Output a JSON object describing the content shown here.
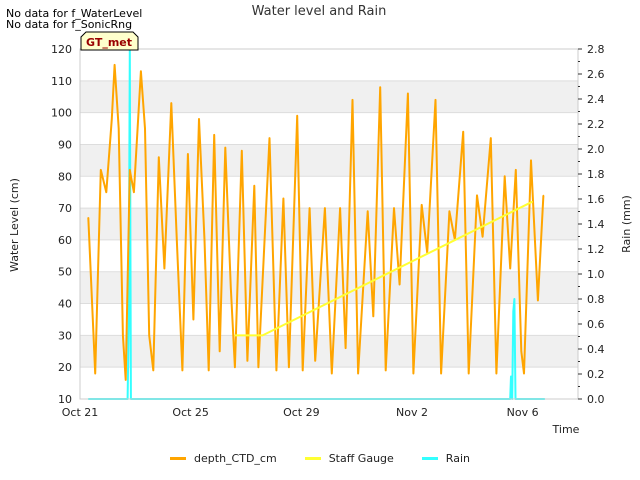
{
  "notes": [
    "No data for f_WaterLevel",
    "No data for f_SonicRng"
  ],
  "badge": "GT_met",
  "chart_data": {
    "type": "line",
    "title": "Water level and Rain",
    "xlabel": "Time",
    "ylabel": "Water Level (cm)",
    "y2label": "Rain (mm)",
    "x_ticks": [
      "Oct 21",
      "Oct 25",
      "Oct 29",
      "Nov 2",
      "Nov 6"
    ],
    "ylim": [
      10,
      120
    ],
    "y_ticks": [
      10,
      20,
      30,
      40,
      50,
      60,
      70,
      80,
      90,
      100,
      110,
      120
    ],
    "y2lim": [
      0.0,
      2.8
    ],
    "y2_ticks": [
      "0.0",
      "0.2",
      "0.4",
      "0.6",
      "0.8",
      "1.0",
      "1.2",
      "1.4",
      "1.6",
      "1.8",
      "2.0",
      "2.2",
      "2.4",
      "2.6",
      "2.8"
    ],
    "grid_bands": true,
    "legend_position": "bottom-center",
    "series": [
      {
        "name": "depth_CTD_cm",
        "color": "#FFA500",
        "axis": "left",
        "points": [
          [
            0.3,
            67
          ],
          [
            0.55,
            18
          ],
          [
            0.75,
            82
          ],
          [
            0.95,
            75
          ],
          [
            1.15,
            98
          ],
          [
            1.25,
            115
          ],
          [
            1.4,
            95
          ],
          [
            1.55,
            30
          ],
          [
            1.65,
            16
          ],
          [
            1.8,
            82
          ],
          [
            1.95,
            75
          ],
          [
            2.2,
            113
          ],
          [
            2.35,
            95
          ],
          [
            2.5,
            30
          ],
          [
            2.65,
            19
          ],
          [
            2.85,
            86
          ],
          [
            3.05,
            51
          ],
          [
            3.3,
            103
          ],
          [
            3.5,
            60
          ],
          [
            3.7,
            19
          ],
          [
            3.9,
            87
          ],
          [
            4.1,
            35
          ],
          [
            4.3,
            98
          ],
          [
            4.5,
            60
          ],
          [
            4.65,
            19
          ],
          [
            4.85,
            93
          ],
          [
            5.05,
            25
          ],
          [
            5.25,
            89
          ],
          [
            5.45,
            45
          ],
          [
            5.6,
            20
          ],
          [
            5.85,
            88
          ],
          [
            6.05,
            22
          ],
          [
            6.3,
            77
          ],
          [
            6.45,
            20
          ],
          [
            6.85,
            92
          ],
          [
            7.1,
            19
          ],
          [
            7.35,
            73
          ],
          [
            7.55,
            20
          ],
          [
            7.85,
            99
          ],
          [
            8.05,
            19
          ],
          [
            8.3,
            70
          ],
          [
            8.5,
            22
          ],
          [
            8.85,
            70
          ],
          [
            9.1,
            18
          ],
          [
            9.4,
            70
          ],
          [
            9.6,
            26
          ],
          [
            9.85,
            104
          ],
          [
            10.05,
            18
          ],
          [
            10.4,
            69
          ],
          [
            10.6,
            36
          ],
          [
            10.85,
            108
          ],
          [
            11.05,
            19
          ],
          [
            11.35,
            70
          ],
          [
            11.55,
            46
          ],
          [
            11.85,
            106
          ],
          [
            12.05,
            18
          ],
          [
            12.35,
            71
          ],
          [
            12.55,
            56
          ],
          [
            12.85,
            104
          ],
          [
            13.05,
            18
          ],
          [
            13.35,
            69
          ],
          [
            13.55,
            60
          ],
          [
            13.85,
            94
          ],
          [
            14.05,
            18
          ],
          [
            14.35,
            74
          ],
          [
            14.55,
            61
          ],
          [
            14.85,
            92
          ],
          [
            15.05,
            18
          ],
          [
            15.35,
            80
          ],
          [
            15.55,
            51
          ],
          [
            15.75,
            82
          ],
          [
            15.95,
            25
          ],
          [
            16.05,
            18
          ],
          [
            16.3,
            85
          ],
          [
            16.55,
            41
          ],
          [
            16.75,
            74
          ]
        ]
      },
      {
        "name": "Staff Gauge",
        "color": "#FFFF33",
        "axis": "left",
        "points": [
          [
            5.6,
            30
          ],
          [
            6.6,
            30
          ],
          [
            16.35,
            72
          ]
        ]
      },
      {
        "name": "Rain",
        "color": "#33FFFF",
        "axis": "right",
        "points": [
          [
            0.3,
            0
          ],
          [
            1.72,
            0
          ],
          [
            1.76,
            0.6
          ],
          [
            1.8,
            2.8
          ],
          [
            1.84,
            0
          ],
          [
            15.55,
            0
          ],
          [
            15.58,
            0.18
          ],
          [
            15.62,
            0.0
          ],
          [
            15.66,
            0.7
          ],
          [
            15.7,
            0.8
          ],
          [
            15.74,
            0
          ],
          [
            16.8,
            0
          ]
        ]
      }
    ]
  }
}
